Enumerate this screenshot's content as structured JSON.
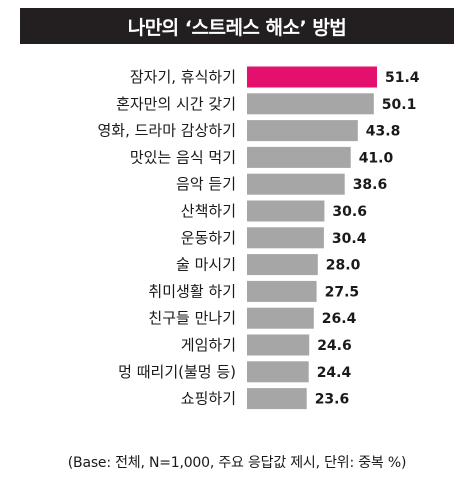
{
  "chart_data": {
    "type": "bar",
    "orientation": "horizontal",
    "title": "나만의 ‘스트레스 해소’ 방법",
    "categories": [
      "잠자기, 휴식하기",
      "혼자만의 시간 갖기",
      "영화, 드라마 감상하기",
      "맛있는 음식 먹기",
      "음악 듣기",
      "산책하기",
      "운동하기",
      "술 마시기",
      "취미생활 하기",
      "친구들 만나기",
      "게임하기",
      "멍 때리기(불멍 등)",
      "쇼핑하기"
    ],
    "values": [
      51.4,
      50.1,
      43.8,
      41.0,
      38.6,
      30.6,
      30.4,
      28.0,
      27.5,
      26.4,
      24.6,
      24.4,
      23.6
    ],
    "value_labels": [
      "51.4",
      "50.1",
      "43.8",
      "41.0",
      "38.6",
      "30.6",
      "30.4",
      "28.0",
      "27.5",
      "26.4",
      "24.6",
      "24.4",
      "23.6"
    ],
    "xlim": [
      0,
      55
    ],
    "highlight_index": 0,
    "colors": {
      "highlight": "#e3106e",
      "bar": "#a6a6a6",
      "title_bg": "#231f20"
    },
    "grid": false,
    "legend": "none",
    "note": "(Base: 전체, N=1,000, 주요 응답값 제시, 단위: 중복 %)"
  }
}
